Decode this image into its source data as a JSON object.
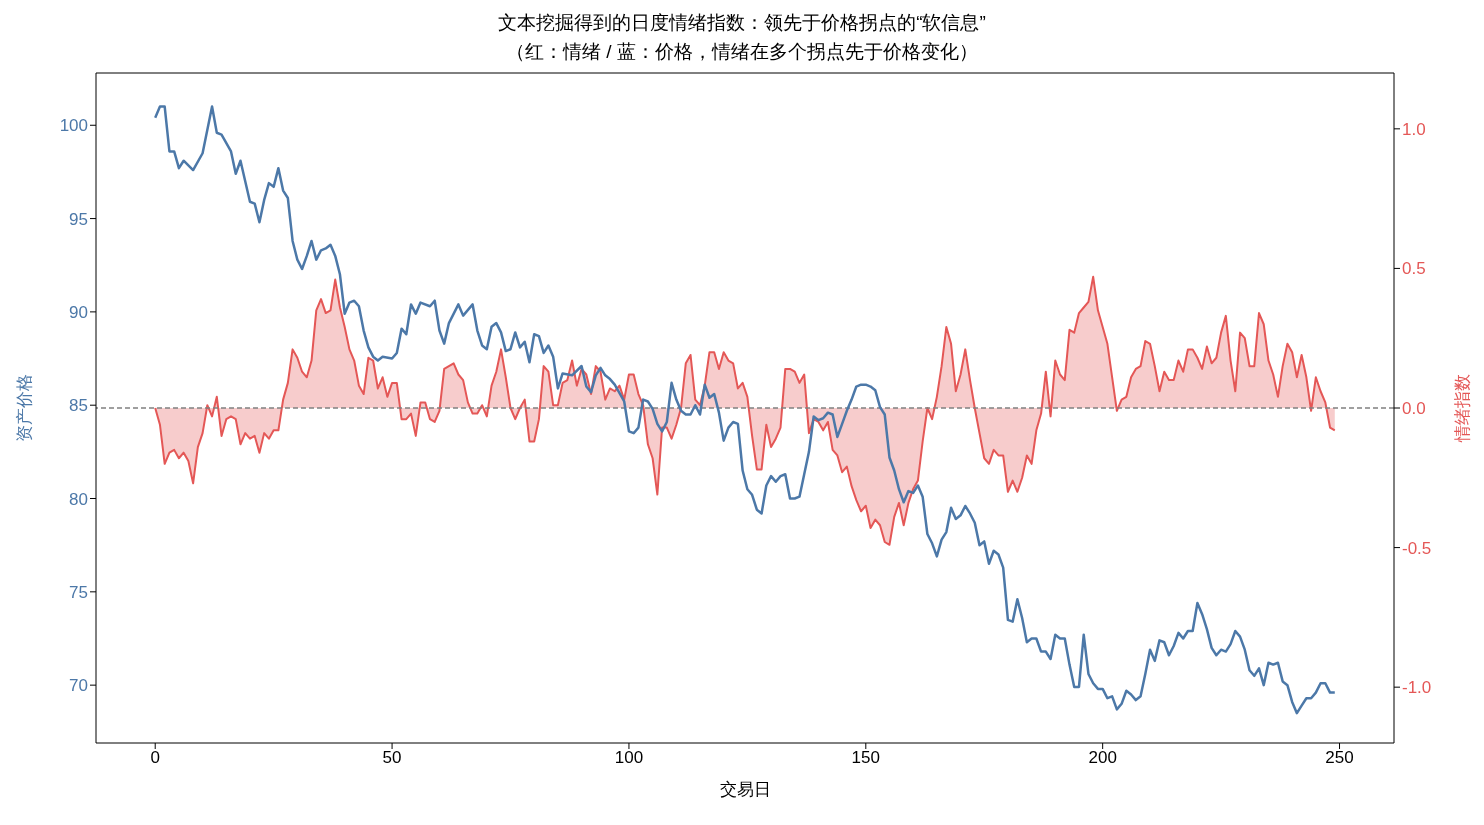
{
  "chart_data": {
    "type": "line",
    "title": "文本挖掘得到的日度情绪指数：领先于价格拐点的“软信息”",
    "subtitle": "（红：情绪 / 蓝：价格，情绪在多个拐点先于价格变化）",
    "xlabel": "交易日",
    "ylabel": "资产价格",
    "y2label": "情绪指数",
    "xlim": [
      -12.5,
      261.5
    ],
    "xticks": [
      0,
      50,
      100,
      150,
      200,
      250
    ],
    "ylim": [
      66.9,
      102.8
    ],
    "yticks": [
      70,
      75,
      80,
      85,
      90,
      95,
      100
    ],
    "y2lim": [
      -1.2,
      1.2
    ],
    "y2ticks": [
      {
        "value": -1,
        "label": "-1.0"
      },
      {
        "value": -0.5,
        "label": "-0.5"
      },
      {
        "value": 0,
        "label": "0.0"
      },
      {
        "value": 0.5,
        "label": "0.5"
      },
      {
        "value": 1,
        "label": "1.0"
      }
    ],
    "grid": false,
    "legend": false,
    "line_style": "solid",
    "marker": "none",
    "ref_lines": [
      {
        "axis": "y2",
        "value": 0,
        "color": "#808080",
        "line_style": "dashed"
      }
    ],
    "series": [
      {
        "color": "#4c78a8",
        "x": [
          0,
          1,
          2,
          3,
          4,
          5,
          6,
          8,
          10,
          12,
          13,
          14,
          16,
          17,
          18,
          20,
          21,
          22,
          23,
          24,
          25,
          26,
          27,
          28,
          29,
          30,
          31,
          32,
          33,
          34,
          35,
          36,
          37,
          38,
          39,
          40,
          41,
          42,
          43,
          44,
          45,
          46,
          47,
          48,
          50,
          51,
          52,
          53,
          54,
          55,
          56,
          58,
          59,
          60,
          61,
          62,
          64,
          65,
          67,
          68,
          69,
          70,
          71,
          72,
          73,
          74,
          75,
          76,
          77,
          78,
          79,
          80,
          81,
          82,
          83,
          84,
          85,
          86,
          88,
          90,
          91,
          92,
          93,
          94,
          95,
          96,
          97,
          99,
          100,
          101,
          102,
          103,
          104,
          105,
          106,
          107,
          108,
          109,
          110,
          111,
          112,
          113,
          114,
          115,
          116,
          117,
          118,
          119,
          120,
          121,
          122,
          123,
          124,
          125,
          126,
          127,
          128,
          129,
          130,
          131,
          132,
          133,
          134,
          135,
          136,
          137,
          138,
          139,
          140,
          141,
          142,
          143,
          144,
          145,
          146,
          147,
          148,
          149,
          150,
          151,
          152,
          153,
          154,
          155,
          156,
          157,
          158,
          159,
          160,
          161,
          162,
          163,
          164,
          165,
          166,
          167,
          168,
          169,
          170,
          171,
          172,
          173,
          174,
          175,
          176,
          177,
          178,
          179,
          180,
          181,
          182,
          183,
          184,
          185,
          186,
          187,
          188,
          189,
          190,
          191,
          192,
          193,
          194,
          195,
          196,
          197,
          198,
          199,
          200,
          201,
          202,
          203,
          204,
          205,
          206,
          207,
          208,
          209,
          210,
          211,
          212,
          213,
          214,
          215,
          216,
          217,
          218,
          219,
          220,
          221,
          222,
          223,
          224,
          225,
          226,
          227,
          228,
          229,
          230,
          231,
          232,
          233,
          234,
          235,
          236,
          237,
          238,
          239,
          240,
          241,
          242,
          243,
          244,
          245,
          246,
          247,
          248,
          249
        ],
        "values": [
          100.4,
          101.0,
          101.0,
          98.6,
          98.6,
          97.7,
          98.1,
          97.6,
          98.5,
          101.0,
          99.6,
          99.5,
          98.6,
          97.4,
          98.1,
          95.9,
          95.8,
          94.8,
          96.0,
          96.9,
          96.7,
          97.7,
          96.5,
          96.1,
          93.8,
          92.8,
          92.3,
          93.0,
          93.8,
          92.8,
          93.3,
          93.4,
          93.6,
          93.0,
          92.0,
          89.9,
          90.5,
          90.6,
          90.3,
          89.0,
          88.1,
          87.6,
          87.4,
          87.6,
          87.5,
          87.8,
          89.1,
          88.8,
          90.4,
          89.9,
          90.5,
          90.3,
          90.6,
          89.0,
          88.3,
          89.4,
          90.4,
          89.8,
          90.4,
          89.0,
          88.2,
          88.0,
          89.2,
          89.4,
          88.9,
          87.9,
          88.0,
          88.9,
          88.1,
          88.4,
          87.3,
          88.8,
          88.7,
          87.8,
          88.2,
          87.6,
          85.9,
          86.7,
          86.6,
          87.1,
          86.0,
          85.7,
          86.6,
          87.0,
          86.6,
          86.4,
          86.1,
          85.2,
          83.6,
          83.5,
          83.8,
          85.3,
          85.2,
          84.8,
          84.0,
          83.6,
          84.1,
          86.2,
          85.3,
          84.7,
          84.5,
          84.5,
          85.0,
          84.5,
          86.1,
          85.4,
          85.6,
          84.6,
          83.1,
          83.8,
          84.1,
          84.0,
          81.5,
          80.5,
          80.2,
          79.4,
          79.2,
          80.7,
          81.2,
          80.9,
          81.2,
          81.3,
          80.0,
          80.0,
          80.1,
          81.3,
          82.5,
          84.4,
          84.2,
          84.3,
          84.6,
          84.5,
          83.3,
          84.0,
          84.7,
          85.3,
          86.0,
          86.1,
          86.1,
          86.0,
          85.8,
          84.9,
          84.5,
          82.2,
          81.5,
          80.5,
          79.8,
          80.4,
          80.3,
          80.7,
          80.1,
          78.1,
          77.6,
          76.9,
          77.8,
          78.2,
          79.5,
          78.9,
          79.1,
          79.6,
          79.2,
          78.7,
          77.5,
          77.7,
          76.5,
          77.2,
          77.0,
          76.3,
          73.5,
          73.4,
          74.6,
          73.6,
          72.3,
          72.5,
          72.5,
          71.8,
          71.8,
          71.4,
          72.7,
          72.5,
          72.5,
          71.1,
          69.9,
          69.9,
          72.7,
          70.6,
          70.1,
          69.8,
          69.8,
          69.3,
          69.4,
          68.7,
          69.0,
          69.7,
          69.5,
          69.2,
          69.4,
          70.6,
          71.9,
          71.3,
          72.4,
          72.3,
          71.6,
          72.1,
          72.8,
          72.5,
          72.9,
          72.9,
          74.4,
          73.8,
          73.0,
          72.0,
          71.6,
          71.9,
          71.8,
          72.2,
          72.9,
          72.6,
          71.9,
          70.8,
          70.5,
          70.9,
          70.0,
          71.2,
          71.1,
          71.2,
          70.2,
          70.0,
          69.1,
          68.5,
          68.9,
          69.3,
          69.3,
          69.6,
          70.1,
          70.1,
          69.6,
          69.6
        ]
      },
      {
        "type": "area",
        "axis": "y2",
        "color": "#e45756",
        "x": [
          0,
          1,
          2,
          3,
          4,
          5,
          6,
          7,
          8,
          9,
          10,
          11,
          12,
          13,
          14,
          15,
          16,
          17,
          18,
          19,
          20,
          21,
          22,
          23,
          24,
          25,
          26,
          27,
          28,
          29,
          30,
          31,
          32,
          33,
          34,
          35,
          36,
          37,
          38,
          39,
          40,
          41,
          42,
          43,
          44,
          45,
          46,
          47,
          48,
          49,
          50,
          51,
          52,
          53,
          54,
          55,
          56,
          57,
          58,
          59,
          60,
          61,
          62,
          63,
          64,
          65,
          66,
          67,
          68,
          69,
          70,
          71,
          72,
          73,
          74,
          75,
          76,
          77,
          78,
          79,
          80,
          81,
          82,
          83,
          84,
          85,
          86,
          87,
          88,
          89,
          90,
          91,
          92,
          93,
          94,
          95,
          96,
          97,
          98,
          99,
          100,
          101,
          102,
          103,
          104,
          105,
          106,
          107,
          108,
          109,
          110,
          111,
          112,
          113,
          114,
          115,
          116,
          117,
          118,
          119,
          120,
          121,
          122,
          123,
          124,
          125,
          126,
          127,
          128,
          129,
          130,
          131,
          132,
          133,
          134,
          135,
          136,
          137,
          138,
          139,
          140,
          141,
          142,
          143,
          144,
          145,
          146,
          147,
          148,
          149,
          150,
          151,
          152,
          153,
          154,
          155,
          156,
          157,
          158,
          159,
          160,
          161,
          162,
          163,
          164,
          165,
          166,
          167,
          168,
          169,
          170,
          171,
          172,
          173,
          174,
          175,
          176,
          177,
          178,
          179,
          180,
          181,
          182,
          183,
          184,
          185,
          186,
          187,
          188,
          189,
          190,
          191,
          192,
          193,
          194,
          195,
          196,
          197,
          198,
          199,
          200,
          201,
          202,
          203,
          204,
          205,
          206,
          207,
          208,
          209,
          210,
          211,
          212,
          213,
          214,
          215,
          216,
          217,
          218,
          219,
          220,
          221,
          222,
          223,
          224,
          225,
          226,
          227,
          228,
          229,
          230,
          231,
          232,
          233,
          234,
          235,
          236,
          237,
          238,
          239,
          240,
          241,
          242,
          243,
          244,
          245,
          246,
          247,
          248,
          249
        ],
        "values": [
          0.0,
          -0.06,
          -0.2,
          -0.16,
          -0.15,
          -0.18,
          -0.16,
          -0.19,
          -0.27,
          -0.14,
          -0.09,
          0.01,
          -0.03,
          0.04,
          -0.1,
          -0.04,
          -0.03,
          -0.04,
          -0.13,
          -0.09,
          -0.11,
          -0.1,
          -0.16,
          -0.09,
          -0.11,
          -0.08,
          -0.08,
          0.03,
          0.09,
          0.21,
          0.18,
          0.13,
          0.11,
          0.17,
          0.35,
          0.39,
          0.34,
          0.35,
          0.46,
          0.36,
          0.29,
          0.21,
          0.17,
          0.08,
          0.05,
          0.18,
          0.17,
          0.07,
          0.11,
          0.04,
          0.09,
          0.09,
          -0.04,
          -0.04,
          -0.02,
          -0.1,
          0.02,
          0.02,
          -0.04,
          -0.05,
          -0.01,
          0.14,
          0.15,
          0.16,
          0.12,
          0.1,
          0.02,
          -0.02,
          -0.02,
          0.01,
          -0.03,
          0.08,
          0.13,
          0.21,
          0.11,
          0.0,
          -0.04,
          0.0,
          0.03,
          -0.12,
          -0.12,
          -0.04,
          0.15,
          0.13,
          0.01,
          0.01,
          0.09,
          0.1,
          0.17,
          0.08,
          0.14,
          0.12,
          0.05,
          0.15,
          0.13,
          0.03,
          0.07,
          0.06,
          0.08,
          0.03,
          0.12,
          0.12,
          0.05,
          0.01,
          -0.13,
          -0.18,
          -0.31,
          -0.07,
          -0.07,
          -0.11,
          -0.06,
          0.0,
          0.16,
          0.19,
          0.03,
          0.01,
          0.08,
          0.2,
          0.2,
          0.14,
          0.2,
          0.17,
          0.16,
          0.07,
          0.09,
          0.04,
          -0.1,
          -0.22,
          -0.22,
          -0.06,
          -0.14,
          -0.11,
          -0.07,
          0.14,
          0.14,
          0.13,
          0.09,
          0.12,
          -0.09,
          -0.04,
          -0.05,
          -0.08,
          -0.05,
          -0.15,
          -0.17,
          -0.23,
          -0.21,
          -0.28,
          -0.33,
          -0.37,
          -0.35,
          -0.43,
          -0.4,
          -0.42,
          -0.48,
          -0.49,
          -0.39,
          -0.34,
          -0.42,
          -0.34,
          -0.29,
          -0.26,
          -0.12,
          0.0,
          -0.04,
          0.04,
          0.15,
          0.29,
          0.23,
          0.06,
          0.12,
          0.21,
          0.1,
          0.0,
          -0.09,
          -0.18,
          -0.2,
          -0.15,
          -0.17,
          -0.17,
          -0.3,
          -0.26,
          -0.3,
          -0.25,
          -0.17,
          -0.2,
          -0.08,
          -0.02,
          0.13,
          -0.03,
          0.17,
          0.12,
          0.1,
          0.28,
          0.27,
          0.34,
          0.36,
          0.38,
          0.47,
          0.35,
          0.29,
          0.23,
          0.11,
          -0.01,
          0.03,
          0.04,
          0.11,
          0.14,
          0.15,
          0.24,
          0.23,
          0.15,
          0.06,
          0.13,
          0.1,
          0.1,
          0.17,
          0.13,
          0.21,
          0.21,
          0.18,
          0.14,
          0.22,
          0.16,
          0.18,
          0.27,
          0.33,
          0.17,
          0.06,
          0.27,
          0.25,
          0.15,
          0.15,
          0.34,
          0.3,
          0.17,
          0.12,
          0.04,
          0.15,
          0.23,
          0.2,
          0.11,
          0.19,
          0.11,
          -0.01,
          0.11,
          0.06,
          0.02,
          -0.07,
          -0.08
        ]
      }
    ]
  }
}
